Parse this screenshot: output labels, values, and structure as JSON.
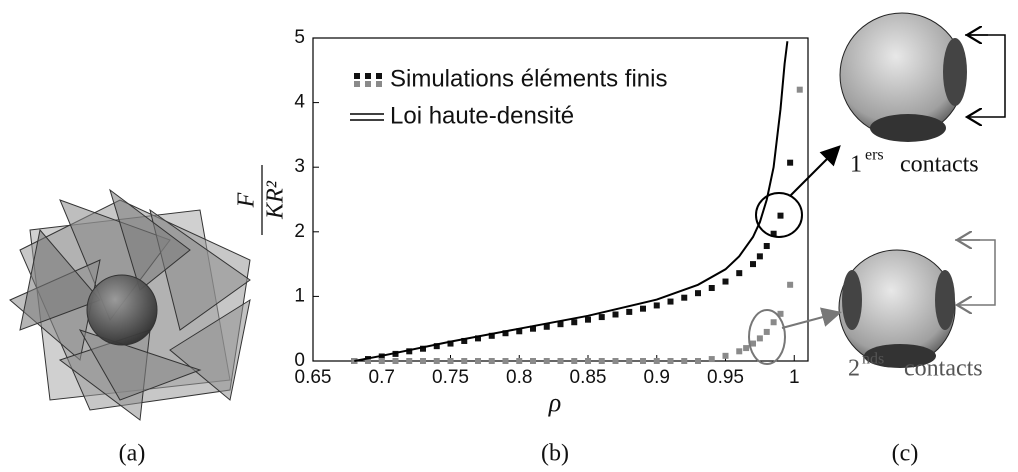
{
  "chart_data": {
    "type": "scatter",
    "xlabel": "ρ",
    "ylabel_numerator": "F",
    "ylabel_denominator": "KR²",
    "xlim": [
      0.65,
      1.01
    ],
    "ylim": [
      0,
      5
    ],
    "xticks": [
      0.65,
      0.7,
      0.75,
      0.8,
      0.85,
      0.9,
      0.95,
      1
    ],
    "yticks": [
      0,
      1,
      2,
      3,
      4,
      5
    ],
    "series": [
      {
        "name": "Simulations éléments finis",
        "color": "#111111",
        "style": "markers",
        "x": [
          0.68,
          0.69,
          0.7,
          0.71,
          0.72,
          0.73,
          0.74,
          0.75,
          0.76,
          0.77,
          0.78,
          0.79,
          0.8,
          0.81,
          0.82,
          0.83,
          0.84,
          0.85,
          0.86,
          0.87,
          0.88,
          0.89,
          0.9,
          0.91,
          0.92,
          0.93,
          0.94,
          0.95,
          0.96,
          0.97,
          0.975,
          0.98,
          0.985,
          0.99,
          0.997
        ],
        "values": [
          0,
          0.03,
          0.07,
          0.11,
          0.15,
          0.19,
          0.23,
          0.27,
          0.31,
          0.35,
          0.39,
          0.43,
          0.46,
          0.5,
          0.53,
          0.57,
          0.6,
          0.64,
          0.68,
          0.72,
          0.76,
          0.81,
          0.86,
          0.92,
          0.98,
          1.05,
          1.13,
          1.23,
          1.36,
          1.5,
          1.62,
          1.78,
          1.97,
          2.25,
          3.07
        ]
      },
      {
        "color": "#8a8a8a",
        "style": "markers",
        "x": [
          0.68,
          0.69,
          0.7,
          0.71,
          0.72,
          0.73,
          0.74,
          0.75,
          0.76,
          0.77,
          0.78,
          0.79,
          0.8,
          0.81,
          0.82,
          0.83,
          0.84,
          0.85,
          0.86,
          0.87,
          0.88,
          0.89,
          0.9,
          0.91,
          0.92,
          0.93,
          0.94,
          0.95,
          0.96,
          0.965,
          0.97,
          0.975,
          0.98,
          0.985,
          0.99,
          0.997,
          1.004
        ],
        "values": [
          0,
          0,
          0,
          0,
          0,
          0,
          0,
          0,
          0,
          0,
          0,
          0,
          0,
          0,
          0,
          0,
          0,
          0,
          0,
          0,
          0,
          0,
          0,
          0,
          0,
          0,
          0.03,
          0.08,
          0.15,
          0.2,
          0.27,
          0.35,
          0.45,
          0.6,
          0.73,
          1.18,
          4.2
        ]
      },
      {
        "name": "Loi haute-densité",
        "color": "#000000",
        "style": "line",
        "x": [
          0.68,
          0.7,
          0.75,
          0.8,
          0.85,
          0.9,
          0.93,
          0.95,
          0.96,
          0.97,
          0.975,
          0.98,
          0.985,
          0.99,
          0.993,
          0.995
        ],
        "values": [
          0,
          0.08,
          0.3,
          0.5,
          0.7,
          0.95,
          1.18,
          1.42,
          1.62,
          1.92,
          2.15,
          2.5,
          3.0,
          3.9,
          4.6,
          4.95
        ]
      }
    ],
    "annotations": {
      "first_contacts": {
        "number": "1",
        "sup": "ers",
        "text": "contacts"
      },
      "second_contacts": {
        "number": "2",
        "sup": "nds",
        "text": "contacts"
      }
    },
    "panel_labels": [
      "(a)",
      "(b)",
      "(c)"
    ]
  }
}
